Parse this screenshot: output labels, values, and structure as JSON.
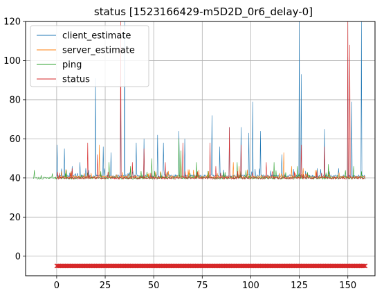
{
  "chart_data": {
    "type": "line",
    "title": "status [1523166429-m5D2D_0r6_delay-0]",
    "xlabel": "",
    "ylabel": "",
    "xlim": [
      -16,
      164
    ],
    "ylim": [
      -10,
      120
    ],
    "xticks": [
      0,
      25,
      50,
      75,
      100,
      125,
      150
    ],
    "yticks": [
      0,
      20,
      40,
      60,
      80,
      100,
      120
    ],
    "xtick_labels": [
      "0",
      "25",
      "50",
      "75",
      "100",
      "125",
      "150"
    ],
    "ytick_labels": [
      "0",
      "20",
      "40",
      "60",
      "80",
      "100",
      "120"
    ],
    "grid": true,
    "legend_placement": "top-left",
    "series": [
      {
        "name": "client_estimate",
        "color": "#1f77b4",
        "baseline": 41,
        "x_range": [
          0,
          159
        ],
        "spikes": [
          [
            0.2,
            57
          ],
          [
            4,
            55
          ],
          [
            8,
            46
          ],
          [
            12,
            48
          ],
          [
            15,
            45
          ],
          [
            20,
            91
          ],
          [
            24,
            56
          ],
          [
            28,
            53
          ],
          [
            33,
            85
          ],
          [
            35,
            120
          ],
          [
            41,
            58
          ],
          [
            45,
            60
          ],
          [
            52,
            62
          ],
          [
            55,
            58
          ],
          [
            63,
            64
          ],
          [
            66,
            60
          ],
          [
            80,
            72
          ],
          [
            84,
            56
          ],
          [
            89,
            66
          ],
          [
            95,
            66
          ],
          [
            99,
            63
          ],
          [
            101,
            79
          ],
          [
            105,
            64
          ],
          [
            116,
            52
          ],
          [
            125,
            120
          ],
          [
            126,
            93
          ],
          [
            138,
            65
          ],
          [
            150,
            102
          ],
          [
            152,
            79
          ],
          [
            157,
            120
          ]
        ]
      },
      {
        "name": "server_estimate",
        "color": "#ff7f0e",
        "baseline": 40.5,
        "x_range": [
          0,
          159
        ],
        "spikes": [
          [
            22,
            57
          ],
          [
            64,
            50
          ],
          [
            91,
            48
          ],
          [
            94,
            46
          ],
          [
            117,
            53
          ],
          [
            121,
            46
          ],
          [
            127,
            45
          ],
          [
            134,
            44
          ],
          [
            140,
            44
          ]
        ]
      },
      {
        "name": "ping",
        "color": "#2ca02c",
        "baseline": 40,
        "x_range": [
          -12,
          159
        ],
        "spikes": [
          [
            -11.5,
            44
          ],
          [
            5,
            44
          ],
          [
            27,
            48
          ],
          [
            38,
            46
          ],
          [
            49,
            50
          ],
          [
            63,
            60
          ],
          [
            64,
            54
          ],
          [
            72,
            48
          ],
          [
            93,
            48
          ],
          [
            112,
            48
          ],
          [
            124,
            46
          ],
          [
            140,
            47
          ],
          [
            153,
            46
          ]
        ]
      },
      {
        "name": "status",
        "color": "#d62728",
        "baseline": 40,
        "x_range": [
          0,
          159
        ],
        "spikes": [
          [
            8,
            45
          ],
          [
            16,
            58
          ],
          [
            21,
            52
          ],
          [
            33,
            120
          ],
          [
            39,
            48
          ],
          [
            45,
            55
          ],
          [
            56,
            48
          ],
          [
            65,
            58
          ],
          [
            79,
            58
          ],
          [
            82,
            46
          ],
          [
            89,
            66
          ],
          [
            95,
            57
          ],
          [
            108,
            48
          ],
          [
            126,
            57
          ],
          [
            138,
            56
          ],
          [
            150,
            120
          ],
          [
            151,
            108
          ]
        ],
        "marker_row": {
          "y": -5,
          "marker": "x",
          "x_start": 0,
          "x_end": 159,
          "step": 0.5
        }
      }
    ]
  }
}
